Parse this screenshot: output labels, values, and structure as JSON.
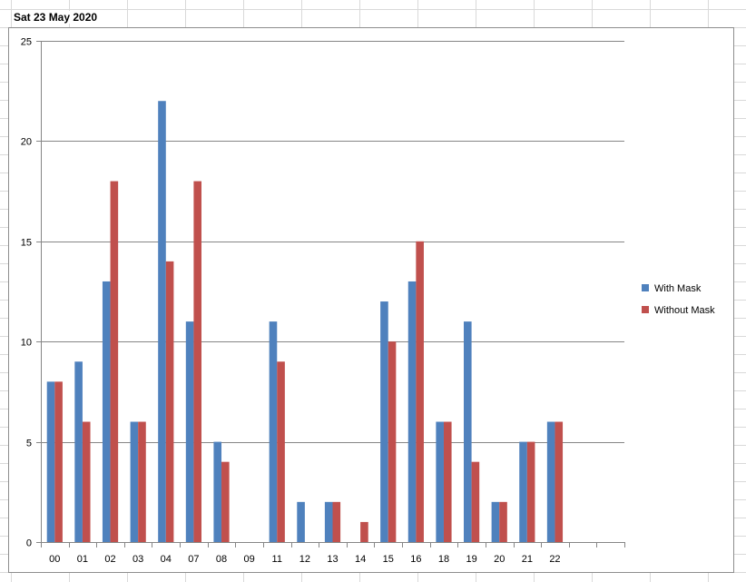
{
  "sheet": {
    "title": "Sat 23 May 2020"
  },
  "colors": {
    "with_mask": "#4f81bd",
    "without_mask": "#c0504d",
    "gridline": "#868686",
    "sheet_grid": "#d9d9d9"
  },
  "chart_data": {
    "type": "bar",
    "title": "",
    "xlabel": "",
    "ylabel": "",
    "categories": [
      "00",
      "01",
      "02",
      "03",
      "04",
      "07",
      "08",
      "09",
      "11",
      "12",
      "13",
      "14",
      "15",
      "16",
      "18",
      "19",
      "20",
      "21",
      "22",
      "",
      ""
    ],
    "series": [
      {
        "name": "With Mask",
        "color": "#4f81bd",
        "values": [
          8,
          9,
          13,
          6,
          22,
          11,
          5,
          0,
          11,
          2,
          2,
          0,
          12,
          13,
          6,
          11,
          2,
          5,
          6,
          0,
          0
        ]
      },
      {
        "name": "Without Mask",
        "color": "#c0504d",
        "values": [
          8,
          6,
          18,
          6,
          14,
          18,
          4,
          0,
          9,
          0,
          2,
          1,
          10,
          15,
          6,
          4,
          2,
          5,
          6,
          0,
          0
        ]
      }
    ],
    "ylim": [
      0,
      25
    ],
    "yticks": [
      0,
      5,
      10,
      15,
      20,
      25
    ],
    "grid": true,
    "legend_position": "right"
  }
}
